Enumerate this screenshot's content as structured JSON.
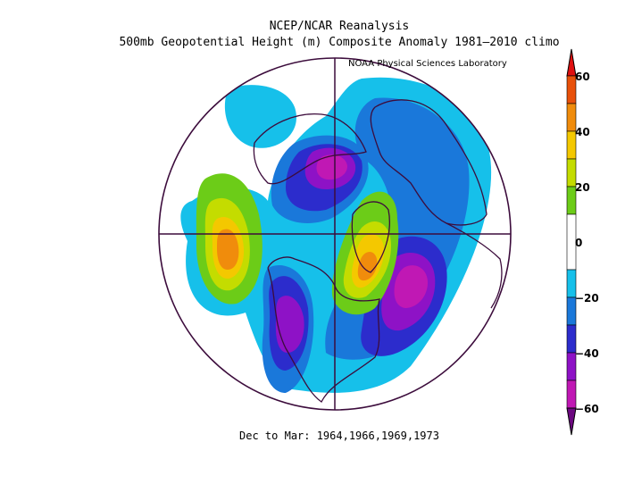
{
  "title_line1": "NCEP/NCAR Reanalysis",
  "title_line2": "500mb Geopotential Height (m) Composite Anomaly 1981–2010 climo",
  "credit": "NOAA Physical Sciences Laboratory",
  "caption": "Dec to Mar: 1964,1966,1969,1973",
  "colorbar": {
    "labels": [
      "60",
      "40",
      "20",
      "0",
      "−20",
      "−40",
      "−60"
    ],
    "bands": [
      {
        "from": 50,
        "to": 60,
        "color": "#e8500a"
      },
      {
        "from": 40,
        "to": 50,
        "color": "#f08c0c"
      },
      {
        "from": 30,
        "to": 40,
        "color": "#f4c800"
      },
      {
        "from": 20,
        "to": 30,
        "color": "#c4dc00"
      },
      {
        "from": 10,
        "to": 20,
        "color": "#6ccc18"
      },
      {
        "from": -10,
        "to": 10,
        "color": "#ffffff"
      },
      {
        "from": -20,
        "to": -10,
        "color": "#16c0ea"
      },
      {
        "from": -30,
        "to": -20,
        "color": "#1a78da"
      },
      {
        "from": -40,
        "to": -30,
        "color": "#2c2ccc"
      },
      {
        "from": -50,
        "to": -40,
        "color": "#8e12c6"
      },
      {
        "from": -60,
        "to": -50,
        "color": "#c018b4"
      }
    ],
    "top_arrow_color": "#e01010",
    "bottom_arrow_color": "#6c0880"
  }
}
